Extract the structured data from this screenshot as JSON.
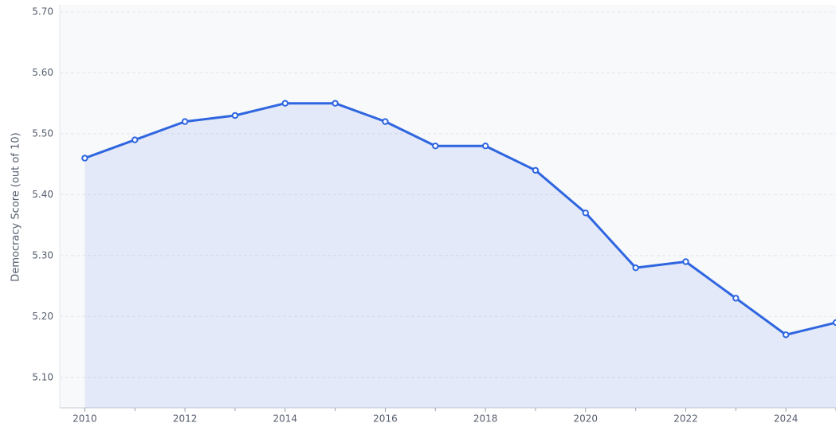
{
  "chart_data": {
    "type": "line",
    "y_label": "Democracy Score (out of 10)",
    "x": [
      2010,
      2011,
      2012,
      2013,
      2014,
      2015,
      2016,
      2017,
      2018,
      2019,
      2020,
      2021,
      2022,
      2023,
      2024,
      2025
    ],
    "series": [
      {
        "color": "#2f66e0",
        "values": [
          5.46,
          5.49,
          5.52,
          5.53,
          5.55,
          5.55,
          5.52,
          5.48,
          5.48,
          5.44,
          5.37,
          5.28,
          5.29,
          5.23,
          5.17,
          5.19
        ]
      }
    ],
    "xlim": [
      2009.5,
      2025
    ],
    "xticks": [
      2010,
      2012,
      2014,
      2016,
      2018,
      2020,
      2022,
      2024
    ],
    "xminor_ticks": [
      2011,
      2013,
      2015,
      2017,
      2019,
      2021,
      2023,
      2025
    ],
    "ylim": [
      5.05,
      5.7
    ],
    "yticks": [
      {
        "value": 5.1,
        "label": "5.10"
      },
      {
        "value": 5.2,
        "label": "5.20"
      },
      {
        "value": 5.3,
        "label": "5.30"
      },
      {
        "value": 5.4,
        "label": "5.40"
      },
      {
        "value": 5.5,
        "label": "5.50"
      },
      {
        "value": 5.6,
        "label": "5.60"
      },
      {
        "value": 5.7,
        "label": "5.70"
      }
    ],
    "grid": true,
    "area_fill": true
  }
}
